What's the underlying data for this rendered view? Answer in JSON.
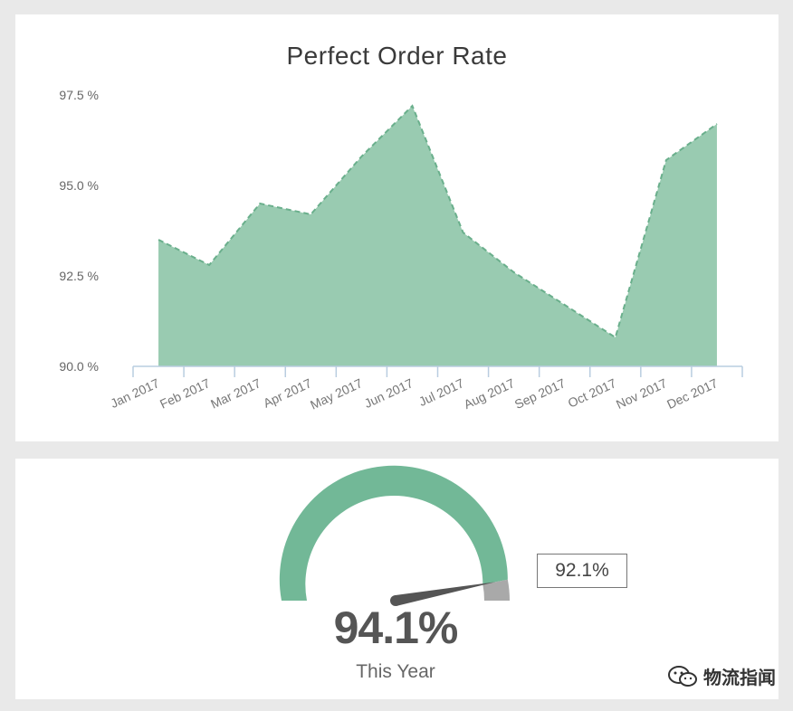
{
  "chart_data": [
    {
      "type": "area",
      "title": "Perfect Order Rate",
      "categories": [
        "Jan 2017",
        "Feb 2017",
        "Mar 2017",
        "Apr 2017",
        "May 2017",
        "Jun 2017",
        "Jul 2017",
        "Aug 2017",
        "Sep 2017",
        "Oct 2017",
        "Nov 2017",
        "Dec 2017"
      ],
      "values": [
        93.5,
        92.8,
        94.5,
        94.2,
        95.8,
        97.2,
        93.7,
        92.6,
        91.7,
        90.8,
        95.7,
        96.7
      ],
      "ylim": [
        90.0,
        97.5
      ],
      "yticks": [
        90.0,
        92.5,
        95.0,
        97.5
      ],
      "ytick_labels": [
        "90.0 %",
        "92.5 %",
        "95.0 %",
        "97.5 %"
      ],
      "xlabel": "",
      "ylabel": "",
      "grid": false,
      "fill_color": "#99cbb1",
      "line_color": "#6aaf8c",
      "axis_color": "#b9cde0"
    },
    {
      "type": "gauge",
      "value": 94.1,
      "value_label": "94.1%",
      "caption": "This Year",
      "target_label": "92.1%",
      "arc_color": "#72b897",
      "remainder_color": "#a9a9a9",
      "needle_color": "#555555"
    }
  ],
  "watermark": {
    "text": "物流指闻",
    "icon": "wechat-icon"
  }
}
